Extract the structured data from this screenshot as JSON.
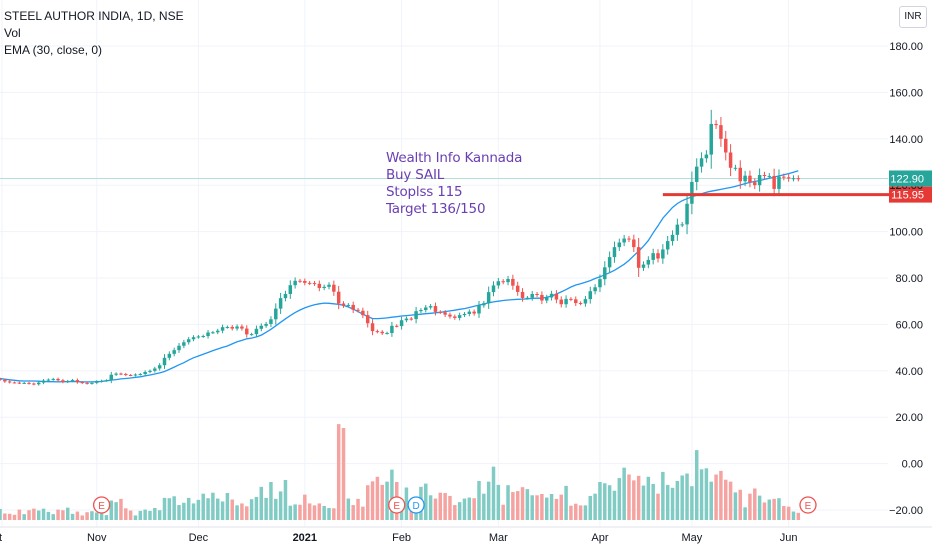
{
  "legend": {
    "symbol_line": "STEEL AUTHOR INDIA, 1D, NSE",
    "volume_line": "Vol",
    "ema_line": "EMA (30, close, 0)"
  },
  "currency": "INR",
  "annotation": {
    "line1": "Wealth Info Kannada",
    "line2": "Buy SAIL",
    "line3": "Stoplss 115",
    "line4": "Target 136/150"
  },
  "colors": {
    "up": "#26a69a",
    "down": "#ef5350",
    "ema": "#2196f3",
    "up_volume": "#80cbc4",
    "down_volume": "#f5a3a1",
    "last_price_badge": "#26a69a",
    "stop_line": "#e53935",
    "price_line": "#b2dfdb",
    "grid": "#f0f3fa",
    "annotation_text": "#6a3fb2",
    "event_marker": "#ef5350",
    "dividend_marker": "#2196f3"
  },
  "chart_data": {
    "type": "candlestick",
    "title": "STEEL AUTHOR INDIA, 1D, NSE",
    "ylim": [
      -24,
      190
    ],
    "y_ticks": [
      180,
      160,
      140,
      120,
      100,
      80,
      60,
      40,
      20,
      0,
      -20
    ],
    "y_tick_labels": [
      "180.00",
      "160.00",
      "140.00",
      "120.00",
      "100.00",
      "80.00",
      "60.00",
      "40.00",
      "20.00",
      "0.00",
      "−20.00"
    ],
    "x_ticks": [
      {
        "label": "ct",
        "idx": 0
      },
      {
        "label": "Nov",
        "idx": 20
      },
      {
        "label": "Dec",
        "idx": 41
      },
      {
        "label": "2021",
        "idx": 63
      },
      {
        "label": "Feb",
        "idx": 83
      },
      {
        "label": "Mar",
        "idx": 103
      },
      {
        "label": "Apr",
        "idx": 124
      },
      {
        "label": "May",
        "idx": 143
      },
      {
        "label": "Jun",
        "idx": 163
      }
    ],
    "n_bars": 168,
    "close": [
      36.1,
      35.4,
      35.0,
      34.9,
      34.7,
      34.8,
      34.5,
      34.2,
      34.9,
      35.8,
      36.2,
      36.5,
      35.9,
      35.2,
      35.6,
      36.0,
      35.1,
      34.8,
      34.5,
      34.8,
      35.4,
      35.7,
      35.9,
      38.3,
      38.8,
      38.6,
      38.2,
      38.1,
      38.4,
      38.6,
      39.5,
      40.0,
      41.0,
      42.4,
      45.6,
      47.3,
      48.9,
      50.8,
      52.3,
      53.6,
      54.5,
      54.8,
      55.0,
      56.5,
      56.6,
      57.3,
      58.8,
      58.9,
      58.2,
      59.1,
      58.2,
      55.7,
      55.8,
      58.1,
      59.4,
      60.2,
      62.2,
      66.8,
      71.3,
      73.1,
      76.9,
      78.8,
      78.7,
      77.9,
      77.8,
      77.5,
      75.7,
      76.2,
      77.1,
      74.1,
      69.0,
      68.1,
      68.4,
      66.3,
      65.9,
      64.0,
      60.5,
      57.1,
      56.8,
      56.2,
      56.3,
      59.4,
      59.3,
      61.8,
      62.5,
      62.3,
      65.7,
      66.2,
      67.3,
      67.9,
      65.4,
      65.2,
      64.2,
      63.4,
      62.8,
      64.0,
      64.5,
      65.5,
      64.7,
      68.2,
      69.1,
      73.9,
      76.8,
      78.6,
      78.2,
      79.6,
      76.7,
      74.0,
      71.4,
      71.5,
      73.1,
      72.7,
      70.3,
      71.6,
      73.2,
      70.7,
      68.7,
      71.0,
      70.8,
      69.2,
      69.0,
      70.9,
      74.3,
      76.0,
      79.5,
      84.6,
      89.0,
      93.3,
      95.3,
      97.0,
      96.6,
      93.3,
      84.4,
      85.8,
      87.8,
      90.7,
      88.4,
      92.3,
      95.9,
      98.6,
      103.0,
      103.1,
      112.0,
      121.4,
      128.0,
      131.6,
      133.2,
      146.4,
      145.9,
      140.0,
      134.1,
      127.5,
      127.5,
      121.7,
      124.1,
      121.3,
      120.0,
      124.4,
      124.0,
      124.0,
      118.4,
      123.7,
      123.4,
      122.9,
      123.0,
      122.9
    ],
    "ema30": [
      36.7,
      36.4,
      36.1,
      35.9,
      35.7,
      35.6,
      35.6,
      35.6,
      35.5,
      35.4,
      35.3,
      35.3,
      35.2,
      35.3,
      35.3,
      35.4,
      35.3,
      35.2,
      35.2,
      35.2,
      35.3,
      35.4,
      35.7,
      36.0,
      36.2,
      36.5,
      36.7,
      36.9,
      37.2,
      37.4,
      37.8,
      38.2,
      38.6,
      39.1,
      39.7,
      40.6,
      41.6,
      42.6,
      43.5,
      44.6,
      45.6,
      46.4,
      47.1,
      47.9,
      48.7,
      49.4,
      50.1,
      50.7,
      51.6,
      52.5,
      53.1,
      53.8,
      54.1,
      54.6,
      55.4,
      56.6,
      57.9,
      59.4,
      60.9,
      62.4,
      63.8,
      65.1,
      66.2,
      67.1,
      67.9,
      68.5,
      68.9,
      69.2,
      69.1,
      68.9,
      68.6,
      68.2,
      67.5,
      66.6,
      65.5,
      64.4,
      63.4,
      62.5,
      62.5,
      62.6,
      62.8,
      63.1,
      63.3,
      63.6,
      63.8,
      64.0,
      64.2,
      64.4,
      64.6,
      64.8,
      65.0,
      65.2,
      65.5,
      65.8,
      66.1,
      66.5,
      66.8,
      67.3,
      67.8,
      68.3,
      68.8,
      69.3,
      69.7,
      70.0,
      70.3,
      70.5,
      70.7,
      70.8,
      70.9,
      71.0,
      71.2,
      71.3,
      71.3,
      71.7,
      72.2,
      73.1,
      74.0,
      75.0,
      76.1,
      77.0,
      77.5,
      78.2,
      78.9,
      79.8,
      80.5,
      81.4,
      82.3,
      83.3,
      84.6,
      85.9,
      87.6,
      89.6,
      91.6,
      93.7,
      96.1,
      99.5,
      102.5,
      105.8,
      108.1,
      110.4,
      112.1,
      113.3,
      114.2,
      115.0,
      115.7,
      116.3,
      117.0,
      117.4,
      117.8,
      118.2,
      118.6,
      119.0,
      119.5,
      120.1,
      120.7,
      121.2,
      121.6,
      122.0,
      122.5,
      123.0,
      123.5,
      124.0,
      124.5,
      125.0,
      125.6,
      126.2
    ],
    "volume": [
      3.4,
      2.0,
      1.9,
      1.6,
      3.2,
      1.8,
      3.0,
      3.5,
      2.9,
      3.5,
      2.5,
      1.8,
      3.2,
      3.0,
      3.8,
      1.9,
      2.6,
      1.4,
      2.4,
      2.7,
      2.3,
      2.3,
      1.5,
      6.0,
      5.5,
      6.5,
      3.6,
      2.9,
      1.4,
      2.8,
      3.2,
      2.8,
      3.7,
      3.0,
      6.8,
      6.7,
      7.3,
      4.6,
      5.3,
      6.8,
      5.1,
      6.2,
      8.1,
      6.7,
      8.4,
      6.6,
      5.7,
      8.3,
      6.3,
      4.5,
      5.1,
      4.2,
      6.4,
      7.1,
      10.2,
      6.8,
      11.7,
      6.5,
      8.8,
      12.3,
      4.4,
      4.8,
      4.7,
      7.8,
      5.1,
      4.5,
      5.1,
      4.3,
      3.7,
      3.6,
      29.5,
      28.3,
      6.6,
      4.6,
      6.5,
      4.1,
      10.7,
      11.9,
      13.3,
      10.8,
      11.8,
      15.5,
      11.7,
      6.3,
      10.0,
      6.2,
      6.9,
      10.2,
      11.2,
      7.6,
      6.6,
      8.4,
      8.3,
      7.4,
      4.6,
      5.5,
      6.6,
      6.9,
      6.7,
      12.0,
      8.1,
      11.8,
      16.4,
      10.8,
      4.7,
      10.7,
      8.6,
      8.9,
      10.1,
      9.5,
      7.6,
      7.6,
      8.0,
      6.9,
      8.0,
      6.5,
      7.8,
      10.5,
      4.4,
      5.0,
      4.5,
      4.5,
      7.4,
      8.1,
      11.7,
      11.3,
      10.7,
      9.0,
      12.9,
      16.1,
      14.0,
      12.2,
      13.6,
      10.6,
      13.3,
      11.1,
      8.1,
      14.8,
      10.8,
      9.9,
      12.0,
      13.7,
      14.3,
      10.4,
      21.5,
      15.6,
      15.9,
      11.8,
      14.0,
      15.1,
      12.4,
      11.8,
      8.5,
      9.3,
      3.9,
      8.1,
      9.7,
      7.5,
      5.4,
      6.3,
      6.5,
      6.7,
      4.3,
      4.1,
      2.6,
      2.2
    ],
    "vol_scale_max": 40,
    "last_price": {
      "value": 122.9,
      "label": "122.90"
    },
    "stop_level": {
      "value": 115.95,
      "label": "115.95"
    },
    "events": [
      {
        "label": "E",
        "idx": 21
      },
      {
        "label": "E",
        "idx": 82
      },
      {
        "label": "D",
        "idx": 86
      },
      {
        "label": "E",
        "idx": 167
      }
    ],
    "grid": true,
    "legend_placement": "top-left"
  }
}
